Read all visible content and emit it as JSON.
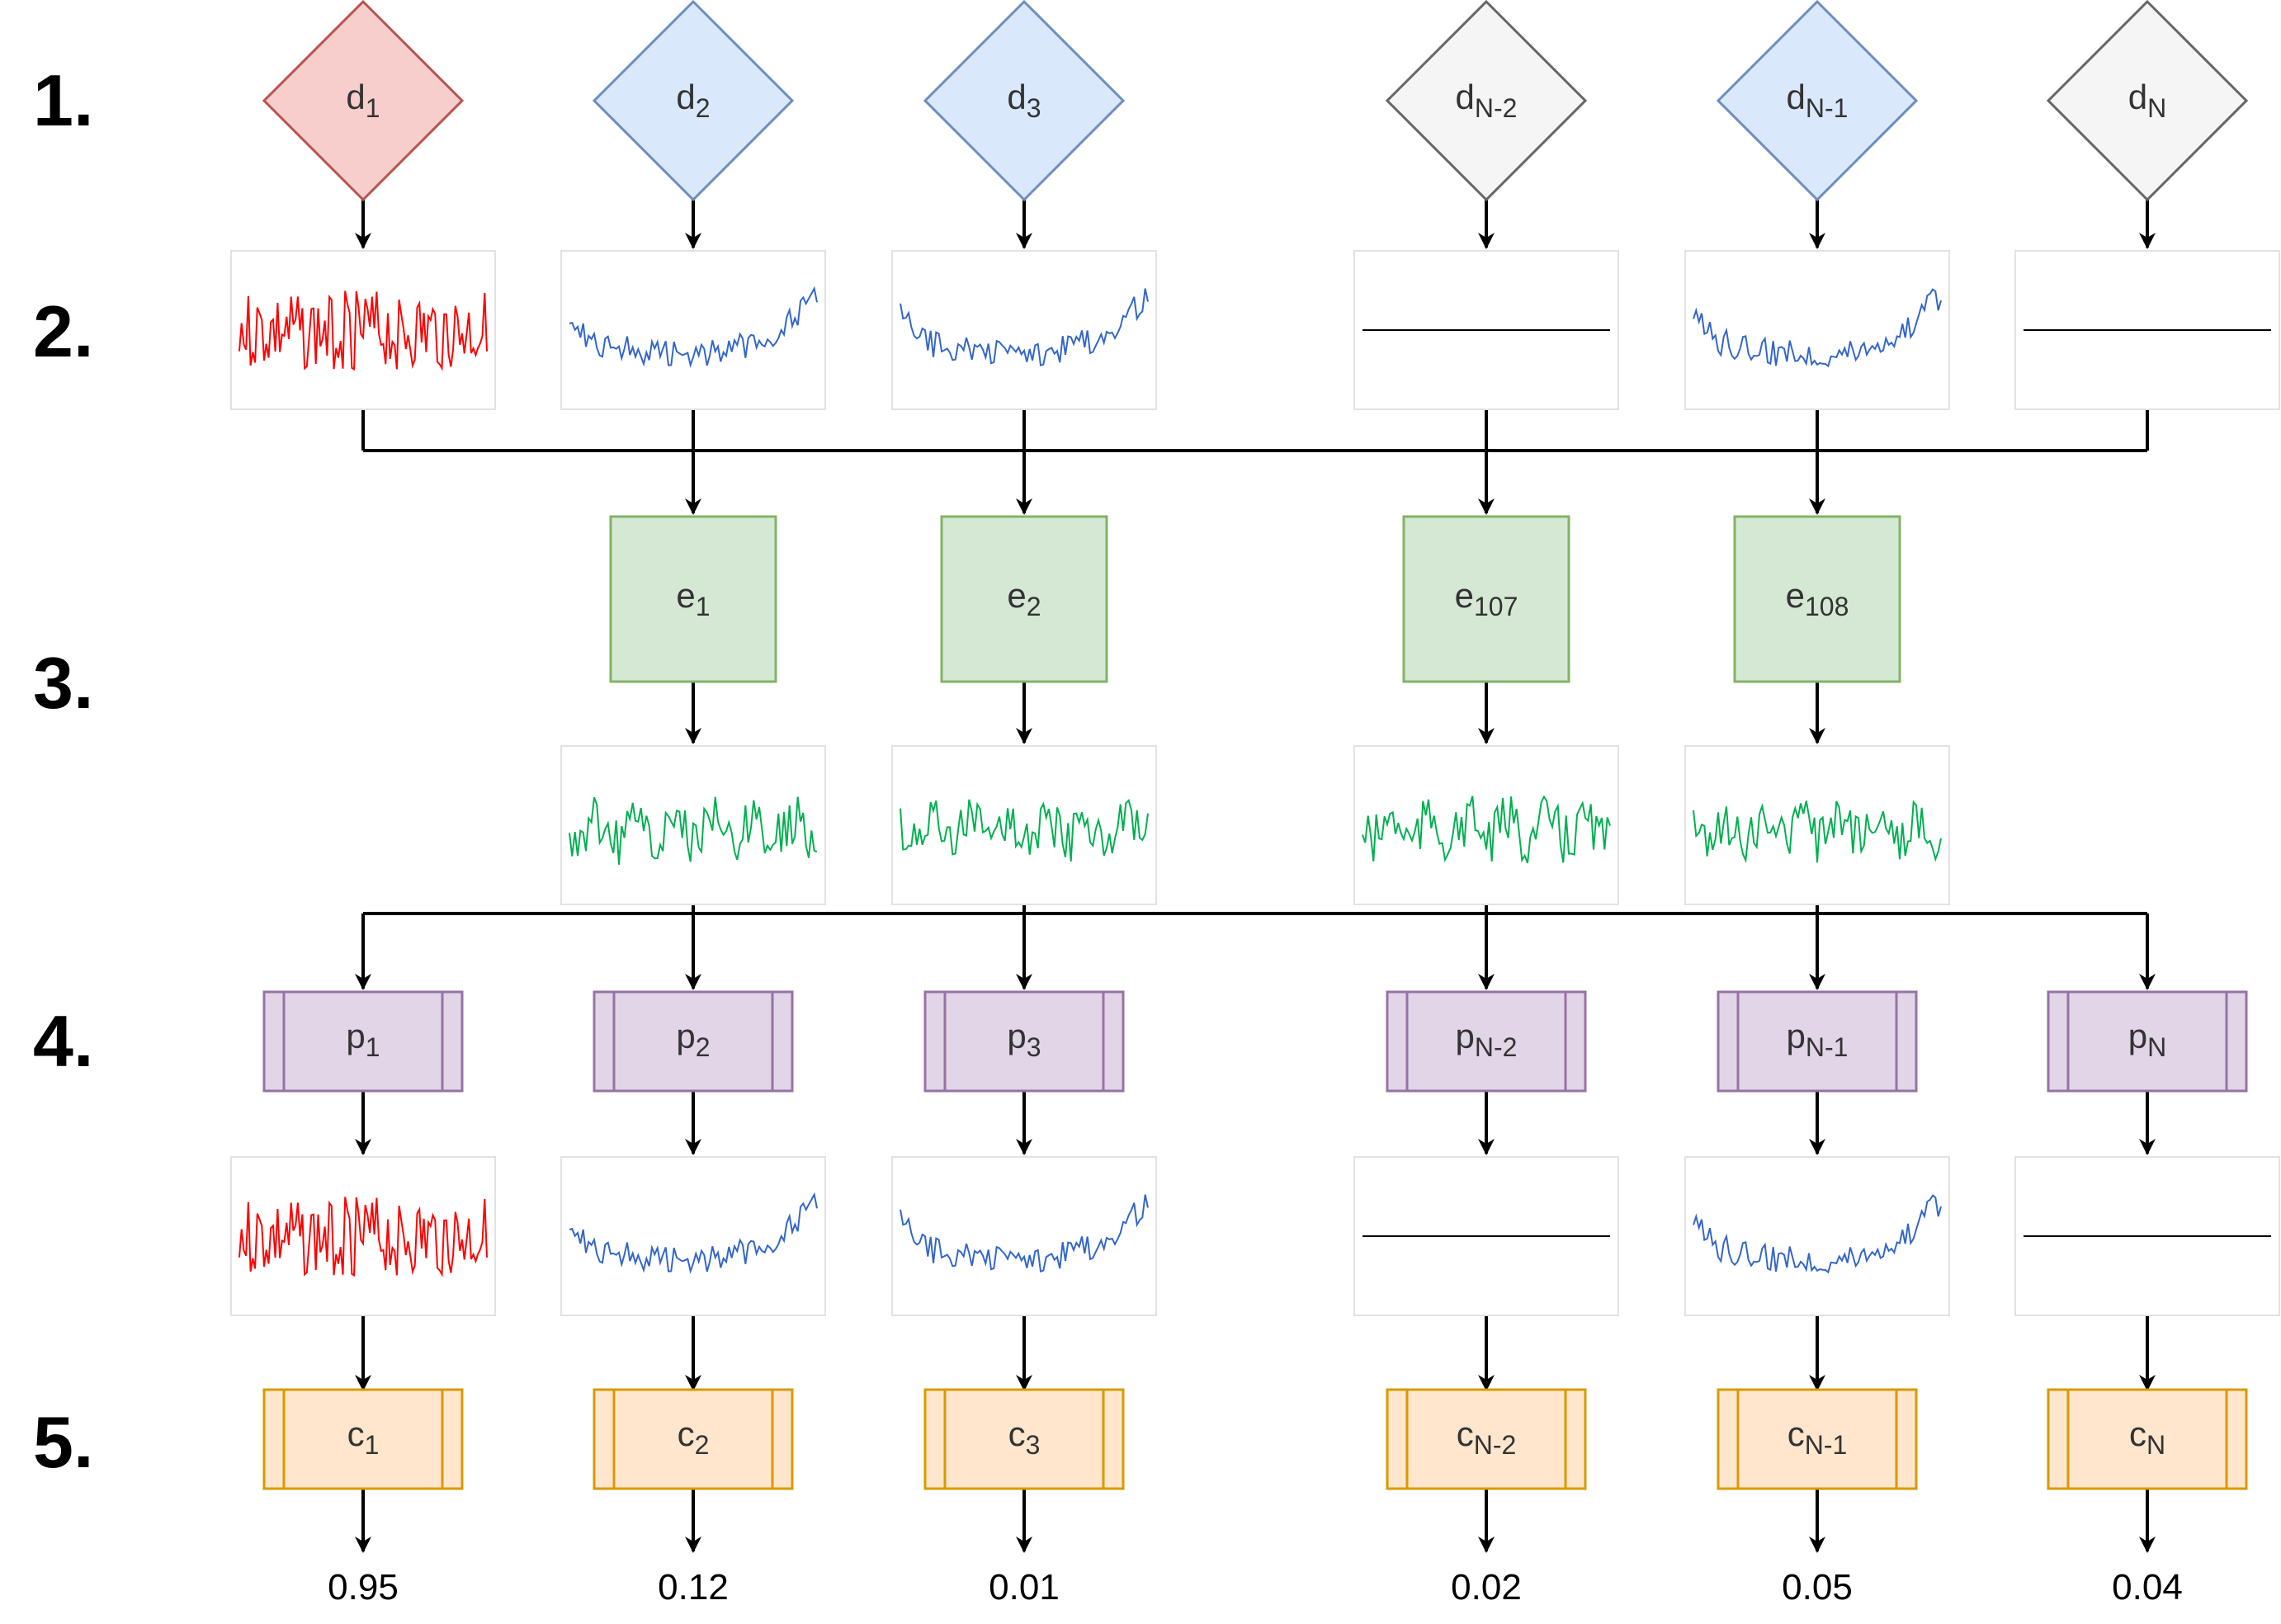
{
  "steps": [
    "1.",
    "2.",
    "3.",
    "4.",
    "5."
  ],
  "colors": {
    "red_fill": "#f8cecc",
    "red_stroke": "#b85450",
    "blue_fill": "#dae8fc",
    "blue_stroke": "#6c8ebf",
    "gray_fill": "#f5f5f5",
    "gray_stroke": "#666666",
    "green_fill": "#d5e8d4",
    "green_stroke": "#82b366",
    "purple_fill": "#e1d5e7",
    "purple_stroke": "#9673a6",
    "orange_fill": "#ffe6cc",
    "orange_stroke": "#d79b00",
    "signal_red": "#ff0000",
    "signal_blue": "#3366cc",
    "signal_green": "#00b050",
    "signal_flat": "#000000"
  },
  "columns": [
    {
      "d": {
        "base": "d",
        "sub": "1"
      },
      "d_style": "red",
      "signal": "red",
      "p": {
        "base": "p",
        "sub": "1"
      },
      "out_signal": "red",
      "c": {
        "base": "c",
        "sub": "1"
      },
      "score": "0.95"
    },
    {
      "d": {
        "base": "d",
        "sub": "2"
      },
      "d_style": "blue",
      "signal": "blue",
      "e": {
        "base": "e",
        "sub": "1"
      },
      "p": {
        "base": "p",
        "sub": "2"
      },
      "out_signal": "blue",
      "c": {
        "base": "c",
        "sub": "2"
      },
      "score": "0.12"
    },
    {
      "d": {
        "base": "d",
        "sub": "3"
      },
      "d_style": "blue",
      "signal": "blue",
      "e": {
        "base": "e",
        "sub": "2"
      },
      "p": {
        "base": "p",
        "sub": "3"
      },
      "out_signal": "blue",
      "c": {
        "base": "c",
        "sub": "3"
      },
      "score": "0.01"
    },
    {
      "d": {
        "base": "d",
        "sub": "N-2"
      },
      "d_style": "gray",
      "signal": "flat",
      "e": {
        "base": "e",
        "sub": "107"
      },
      "p": {
        "base": "p",
        "sub": "N-2"
      },
      "out_signal": "flat",
      "c": {
        "base": "c",
        "sub": "N-2"
      },
      "score": "0.02"
    },
    {
      "d": {
        "base": "d",
        "sub": "N-1"
      },
      "d_style": "blue",
      "signal": "blue",
      "e": {
        "base": "e",
        "sub": "108"
      },
      "p": {
        "base": "p",
        "sub": "N-1"
      },
      "out_signal": "blue",
      "c": {
        "base": "c",
        "sub": "N-1"
      },
      "score": "0.05"
    },
    {
      "d": {
        "base": "d",
        "sub": "N"
      },
      "d_style": "gray",
      "signal": "flat",
      "p": {
        "base": "p",
        "sub": "N"
      },
      "out_signal": "flat",
      "c": {
        "base": "c",
        "sub": "N"
      },
      "score": "0.04"
    }
  ]
}
